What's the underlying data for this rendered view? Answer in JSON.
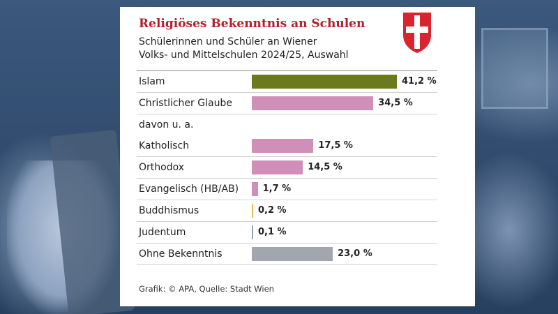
{
  "chart_data": {
    "type": "bar",
    "orientation": "horizontal",
    "title": "Religiöses Bekenntnis an Schulen",
    "subtitle_lines": [
      "Schülerinnen und Schüler an Wiener",
      "Volks- und Mittelschulen 2024/25, Auswahl"
    ],
    "xlim": [
      0,
      41.2
    ],
    "xlabel": "",
    "ylabel": "",
    "grid": false,
    "rows": [
      {
        "label": "Islam",
        "value": 41.2,
        "display": "41,2 %",
        "color": "#6b7a1c"
      },
      {
        "label": "Christlicher Glaube",
        "value": 34.5,
        "display": "34,5 %",
        "color": "#cf8fb8"
      },
      {
        "label": "davon u. a.",
        "value": null,
        "display": "",
        "color": ""
      },
      {
        "label": "Katholisch",
        "value": 17.5,
        "display": "17,5 %",
        "color": "#cf8fb8"
      },
      {
        "label": "Orthodox",
        "value": 14.5,
        "display": "14,5 %",
        "color": "#cf8fb8"
      },
      {
        "label": "Evangelisch (HB/AB)",
        "value": 1.7,
        "display": "1,7 %",
        "color": "#cf8fb8"
      },
      {
        "label": "Buddhismus",
        "value": 0.2,
        "display": "0,2 %",
        "color": "#e8b85a"
      },
      {
        "label": "Judentum",
        "value": 0.1,
        "display": "0,1 %",
        "color": "#9aa0aa"
      },
      {
        "label": "Ohne Bekenntnis",
        "value": 23.0,
        "display": "23,0 %",
        "color": "#a2a6ae"
      }
    ]
  },
  "footer": "Grafik: © APA, Quelle: Stadt Wien"
}
